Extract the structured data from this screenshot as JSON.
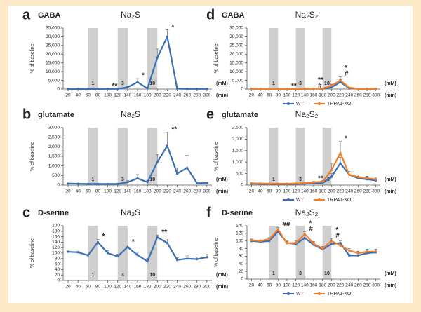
{
  "chart_data": [
    {
      "type": "line",
      "panel_label": "a",
      "title": "GABA",
      "subtitle": "Na₂S",
      "ylabel": "% of baseline",
      "xlabel": "(min)",
      "band_unit": "(mM)",
      "x": [
        20,
        40,
        60,
        80,
        100,
        120,
        140,
        160,
        180,
        200,
        220,
        240,
        260,
        280,
        300
      ],
      "xlim": [
        10,
        310
      ],
      "xticks": [
        20,
        40,
        60,
        80,
        100,
        120,
        140,
        160,
        180,
        200,
        220,
        240,
        260,
        280,
        300
      ],
      "ylim": [
        0,
        35000
      ],
      "yticks": [
        0,
        {
          "value": 5000,
          "label": "5,000"
        },
        {
          "value": 10000,
          "label": "10,000"
        },
        {
          "value": 15000,
          "label": "15,000"
        },
        {
          "value": 20000,
          "label": "20,000"
        },
        {
          "value": 25000,
          "label": "25,000"
        },
        {
          "value": 30000,
          "label": "30,000"
        },
        {
          "value": 35000,
          "label": "35,000"
        }
      ],
      "bands": [
        {
          "from": 60,
          "to": 80,
          "label": "1"
        },
        {
          "from": 120,
          "to": 140,
          "label": "3"
        },
        {
          "from": 180,
          "to": 200,
          "label": "10"
        }
      ],
      "series": [
        {
          "color": "#3a6fb5",
          "values": [
            50,
            50,
            50,
            50,
            100,
            100,
            1000,
            4000,
            300,
            18000,
            30000,
            200,
            100,
            100,
            100
          ],
          "errors": [
            null,
            null,
            null,
            null,
            null,
            null,
            500,
            2000,
            null,
            5000,
            4000,
            null,
            null,
            null,
            null
          ]
        }
      ],
      "annotations": [
        {
          "x": 100,
          "text": "**",
          "color": "#222"
        },
        {
          "x": 160,
          "text": "*",
          "color": "#222"
        },
        {
          "x": 220,
          "text": "*",
          "color": "#222"
        }
      ]
    },
    {
      "type": "line",
      "panel_label": "b",
      "title": "glutamate",
      "subtitle": "Na₂S",
      "ylabel": "% of baseline",
      "xlabel": "(min)",
      "band_unit": "(mM)",
      "x": [
        20,
        40,
        60,
        80,
        100,
        120,
        140,
        160,
        180,
        200,
        220,
        240,
        260,
        280,
        300
      ],
      "xlim": [
        10,
        310
      ],
      "xticks": [
        20,
        40,
        60,
        80,
        100,
        120,
        140,
        160,
        180,
        200,
        220,
        240,
        260,
        280,
        300
      ],
      "ylim": [
        0,
        3000
      ],
      "yticks": [
        0,
        500,
        {
          "value": 1000,
          "label": "1,000"
        },
        {
          "value": 1500,
          "label": "1,500"
        },
        {
          "value": 2000,
          "label": "2,000"
        },
        {
          "value": 2500,
          "label": "2,500"
        },
        {
          "value": 3000,
          "label": "3,000"
        }
      ],
      "bands": [
        {
          "from": 60,
          "to": 80,
          "label": "1"
        },
        {
          "from": 120,
          "to": 140,
          "label": "3"
        },
        {
          "from": 180,
          "to": 200,
          "label": "10"
        }
      ],
      "series": [
        {
          "color": "#3a6fb5",
          "values": [
            80,
            70,
            60,
            60,
            60,
            60,
            150,
            350,
            150,
            1200,
            2050,
            600,
            900,
            100,
            100
          ],
          "errors": [
            null,
            null,
            null,
            null,
            null,
            null,
            80,
            200,
            100,
            400,
            700,
            300,
            650,
            null,
            null
          ]
        }
      ],
      "annotations": [
        {
          "x": 220,
          "text": "**",
          "color": "#222"
        }
      ]
    },
    {
      "type": "line",
      "panel_label": "c",
      "title": "D-serine",
      "subtitle": "Na₂S",
      "ylabel": "% of baseline",
      "xlabel": "(min)",
      "band_unit": "(mM)",
      "x": [
        20,
        40,
        60,
        80,
        100,
        120,
        140,
        160,
        180,
        200,
        220,
        240,
        260,
        280,
        300
      ],
      "xlim": [
        10,
        310
      ],
      "xticks": [
        20,
        40,
        60,
        80,
        100,
        120,
        140,
        160,
        180,
        200,
        220,
        240,
        260,
        280,
        300
      ],
      "ylim": [
        0,
        200
      ],
      "yticks": [
        0,
        20,
        40,
        60,
        80,
        100,
        120,
        140,
        160,
        180,
        200
      ],
      "bands": [
        {
          "from": 60,
          "to": 80,
          "label": "1"
        },
        {
          "from": 120,
          "to": 140,
          "label": "3"
        },
        {
          "from": 180,
          "to": 200,
          "label": "10"
        }
      ],
      "series": [
        {
          "color": "#3a6fb5",
          "values": [
            105,
            103,
            92,
            140,
            100,
            88,
            122,
            93,
            70,
            158,
            137,
            75,
            80,
            78,
            85
          ],
          "errors": [
            3,
            3,
            4,
            10,
            10,
            8,
            8,
            10,
            10,
            8,
            12,
            8,
            10,
            8,
            10
          ]
        }
      ],
      "annotations": [
        {
          "x": 80,
          "text": "*",
          "color": "#222"
        },
        {
          "x": 140,
          "text": "*",
          "color": "#222"
        },
        {
          "x": 200,
          "text": "**",
          "color": "#222"
        }
      ]
    },
    {
      "type": "line",
      "panel_label": "d",
      "title": "GABA",
      "subtitle": "Na₂S₂",
      "ylabel": "% of baseline",
      "xlabel": "(min)",
      "band_unit": "(mM)",
      "x": [
        20,
        40,
        60,
        80,
        100,
        120,
        140,
        160,
        180,
        200,
        220,
        240,
        260,
        280,
        300
      ],
      "xlim": [
        10,
        310
      ],
      "xticks": [
        20,
        40,
        60,
        80,
        100,
        120,
        140,
        160,
        180,
        200,
        220,
        240,
        260,
        280,
        300
      ],
      "ylim": [
        0,
        35000
      ],
      "yticks": [
        0,
        {
          "value": 5000,
          "label": "5,000"
        },
        {
          "value": 10000,
          "label": "10,000"
        },
        {
          "value": 15000,
          "label": "15,000"
        },
        {
          "value": 20000,
          "label": "20,000"
        },
        {
          "value": 25000,
          "label": "25,000"
        },
        {
          "value": 30000,
          "label": "30,000"
        },
        {
          "value": 35000,
          "label": "35,000"
        }
      ],
      "bands": [
        {
          "from": 60,
          "to": 80,
          "label": "1"
        },
        {
          "from": 120,
          "to": 140,
          "label": "3"
        },
        {
          "from": 180,
          "to": 200,
          "label": "10"
        }
      ],
      "series": [
        {
          "name": "WT",
          "color": "#3a6fb5",
          "values": [
            50,
            50,
            50,
            50,
            50,
            50,
            100,
            200,
            100,
            1000,
            4000,
            500,
            100,
            100,
            100
          ],
          "errors": [
            null,
            null,
            null,
            null,
            null,
            null,
            null,
            null,
            null,
            500,
            1500,
            null,
            null,
            null,
            null
          ]
        },
        {
          "name": "TRPA1-KO",
          "color": "#f07f2a",
          "values": [
            50,
            50,
            50,
            50,
            50,
            50,
            150,
            300,
            200,
            2000,
            5000,
            800,
            150,
            100,
            100
          ],
          "errors": [
            null,
            null,
            null,
            null,
            null,
            null,
            null,
            null,
            null,
            800,
            2000,
            null,
            null,
            null,
            null
          ]
        }
      ],
      "annotations": [
        {
          "x": 100,
          "text": "**",
          "color": "#f07f2a"
        },
        {
          "x": 160,
          "text": "#",
          "color": "#3a6fb5"
        },
        {
          "x": 160,
          "text": "**",
          "color": "#f07f2a"
        },
        {
          "x": 220,
          "text": "#",
          "color": "#3a6fb5"
        },
        {
          "x": 220,
          "text": "*",
          "color": "#f07f2a"
        }
      ]
    },
    {
      "type": "line",
      "panel_label": "e",
      "title": "glutamate",
      "subtitle": "Na₂S₂",
      "ylabel": "% of baseline",
      "xlabel": "(min)",
      "band_unit": "(mM)",
      "x": [
        20,
        40,
        60,
        80,
        100,
        120,
        140,
        160,
        180,
        200,
        220,
        240,
        260,
        280,
        300
      ],
      "xlim": [
        10,
        310
      ],
      "xticks": [
        20,
        40,
        60,
        80,
        100,
        120,
        140,
        160,
        180,
        200,
        220,
        240,
        260,
        280,
        300
      ],
      "ylim": [
        0,
        2500
      ],
      "yticks": [
        0,
        500,
        {
          "value": 1000,
          "label": "1,000"
        },
        {
          "value": 1500,
          "label": "1,500"
        },
        {
          "value": 2000,
          "label": "2,000"
        },
        {
          "value": 2500,
          "label": "2,500"
        }
      ],
      "bands": [
        {
          "from": 60,
          "to": 80,
          "label": "1"
        },
        {
          "from": 120,
          "to": 140,
          "label": "3"
        },
        {
          "from": 180,
          "to": 200,
          "label": "10"
        }
      ],
      "series": [
        {
          "name": "WT",
          "color": "#3a6fb5",
          "values": [
            60,
            50,
            50,
            50,
            50,
            50,
            60,
            80,
            80,
            350,
            950,
            450,
            300,
            250,
            200
          ],
          "errors": [
            null,
            null,
            null,
            null,
            null,
            null,
            null,
            null,
            null,
            150,
            250,
            150,
            80,
            60,
            50
          ]
        },
        {
          "name": "TRPA1-KO",
          "color": "#f07f2a",
          "values": [
            80,
            70,
            60,
            60,
            60,
            70,
            90,
            120,
            150,
            650,
            1400,
            450,
            350,
            300,
            250
          ],
          "errors": [
            null,
            null,
            null,
            null,
            null,
            null,
            null,
            40,
            50,
            300,
            500,
            150,
            100,
            80,
            60
          ]
        }
      ],
      "annotations": [
        {
          "x": 160,
          "text": "**",
          "color": "#f07f2a"
        },
        {
          "x": 220,
          "text": "*",
          "color": "#f07f2a"
        }
      ]
    },
    {
      "type": "line",
      "panel_label": "f",
      "title": "D-serine",
      "subtitle": "Na₂S₂",
      "ylabel": "% of baseline",
      "xlabel": "(min)",
      "band_unit": "(mM)",
      "x": [
        20,
        40,
        60,
        80,
        100,
        120,
        140,
        160,
        180,
        200,
        220,
        240,
        260,
        280,
        300
      ],
      "xlim": [
        10,
        310
      ],
      "xticks": [
        20,
        40,
        60,
        80,
        100,
        120,
        140,
        160,
        180,
        200,
        220,
        240,
        260,
        280,
        300
      ],
      "ylim": [
        0,
        140
      ],
      "yticks": [
        0,
        20,
        40,
        60,
        80,
        100,
        120,
        140
      ],
      "bands": [
        {
          "from": 60,
          "to": 80,
          "label": "1"
        },
        {
          "from": 120,
          "to": 140,
          "label": "3"
        },
        {
          "from": 180,
          "to": 200,
          "label": "10"
        }
      ],
      "series": [
        {
          "name": "WT",
          "color": "#3a6fb5",
          "values": [
            100,
            98,
            100,
            125,
            95,
            92,
            108,
            90,
            78,
            92,
            95,
            62,
            62,
            68,
            70
          ],
          "errors": [
            3,
            3,
            4,
            6,
            5,
            5,
            6,
            6,
            6,
            6,
            6,
            4,
            5,
            6,
            6
          ]
        },
        {
          "name": "TRPA1-KO",
          "color": "#f07f2a",
          "values": [
            102,
            100,
            105,
            130,
            94,
            95,
            118,
            93,
            80,
            100,
            88,
            75,
            68,
            72,
            72
          ],
          "errors": [
            3,
            3,
            4,
            6,
            5,
            5,
            6,
            6,
            6,
            6,
            6,
            5,
            5,
            6,
            6
          ]
        }
      ],
      "annotations": [
        {
          "x": 80,
          "text": "##",
          "color": "#3a6fb5"
        },
        {
          "x": 140,
          "text": "#",
          "color": "#3a6fb5"
        },
        {
          "x": 140,
          "text": "*",
          "color": "#f07f2a"
        },
        {
          "x": 200,
          "text": "#",
          "color": "#3a6fb5"
        },
        {
          "x": 200,
          "text": "*",
          "color": "#f07f2a"
        }
      ]
    }
  ]
}
